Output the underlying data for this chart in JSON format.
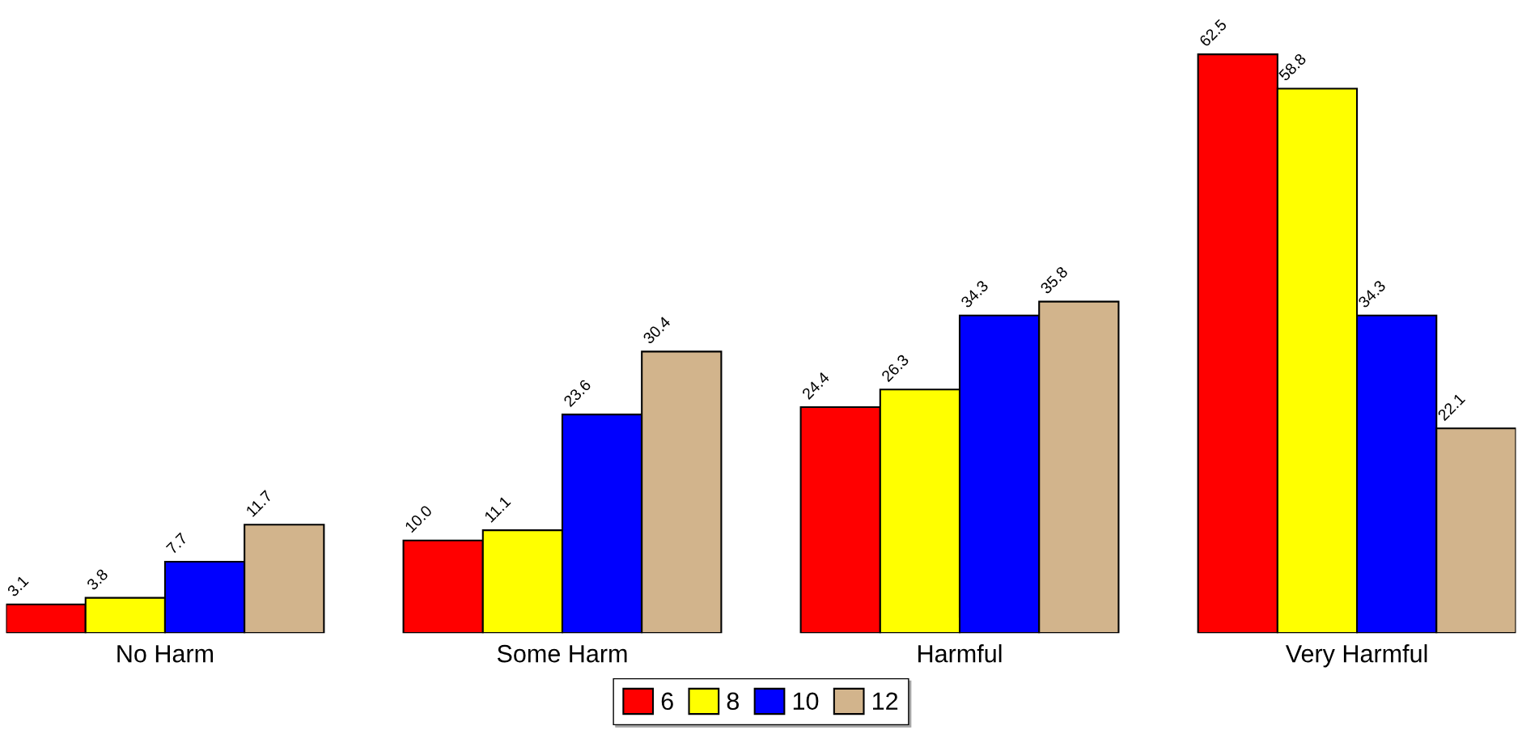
{
  "chart_data": {
    "type": "bar",
    "categories": [
      "No Harm",
      "Some Harm",
      "Harmful",
      "Very Harmful"
    ],
    "series": [
      {
        "name": "6",
        "color": "#ff0000",
        "values": [
          3.1,
          10.0,
          24.4,
          62.5
        ],
        "value_labels": [
          "3.1",
          "10.0",
          "24.4",
          "62.5"
        ]
      },
      {
        "name": "8",
        "color": "#ffff00",
        "values": [
          3.8,
          11.1,
          26.3,
          58.8
        ],
        "value_labels": [
          "3.8",
          "11.1",
          "26.3",
          "58.8"
        ]
      },
      {
        "name": "10",
        "color": "#0000ff",
        "values": [
          7.7,
          23.6,
          34.3,
          34.3
        ],
        "value_labels": [
          "7.7",
          "23.6",
          "34.3",
          "34.3"
        ]
      },
      {
        "name": "12",
        "color": "#d2b48c",
        "values": [
          11.7,
          30.4,
          35.8,
          22.1
        ],
        "value_labels": [
          "11.7",
          "30.4",
          "35.8",
          "22.1"
        ]
      }
    ],
    "legend": "bottom",
    "grid": false
  }
}
